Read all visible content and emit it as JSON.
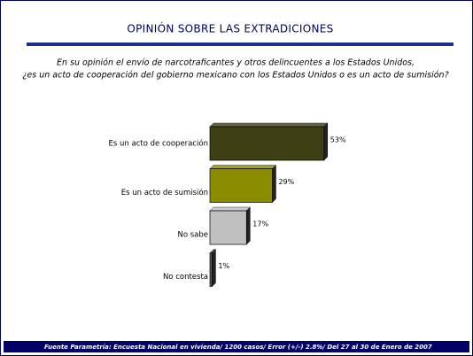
{
  "chart_data": {
    "type": "hbar",
    "title": "OPINIÓN SOBRE LAS EXTRADICIONES",
    "subtitle": [
      "En su opinión el envío de narcotraficantes y otros delincuentes a los Estados Unidos,",
      "¿es un acto de cooperación del gobierno mexicano con los Estados Unidos o es un acto de sumisión?"
    ],
    "categories": [
      "Es un acto de cooperación",
      "Es un acto de sumisión",
      "No sabe",
      "No contesta"
    ],
    "values": [
      53,
      29,
      17,
      1
    ],
    "value_labels": [
      "53%",
      "29%",
      "17%",
      "1%"
    ],
    "colors": [
      "#3f3f14",
      "#8c8c00",
      "#c0c0c0",
      "#5a5a5a"
    ],
    "source": "Fuente Parametría: Encuesta Nacional en vivienda/ 1200 casos/ Error (+/-) 2.8%/ Del 27 al 30 de Enero de 2007"
  }
}
